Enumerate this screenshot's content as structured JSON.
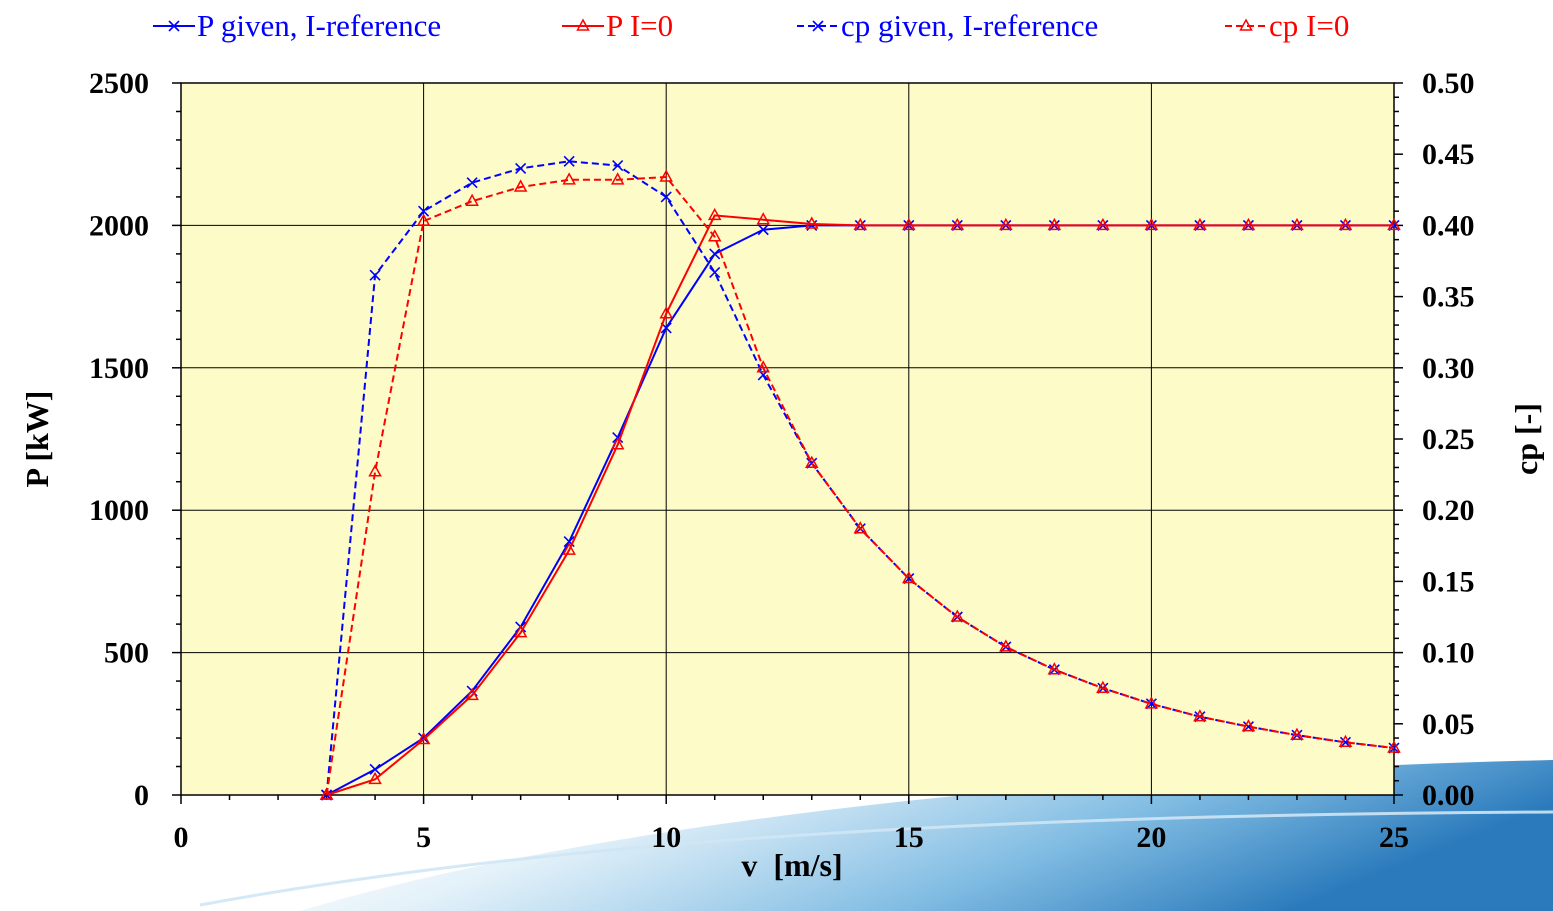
{
  "chart_data": {
    "type": "line",
    "xlabel": "v  [m/s]",
    "ylabel_left": "P [kW]",
    "ylabel_right": "cp [-]",
    "xlim": [
      0,
      25
    ],
    "ylim_left": [
      0,
      2500
    ],
    "ylim_right": [
      0,
      0.5
    ],
    "x_ticks": [
      "0",
      "5",
      "10",
      "15",
      "20",
      "25"
    ],
    "y_ticks_left": [
      "0",
      "500",
      "1000",
      "1500",
      "2000",
      "2500"
    ],
    "y_ticks_right": [
      "0.00",
      "0.05",
      "0.10",
      "0.15",
      "0.20",
      "0.25",
      "0.30",
      "0.35",
      "0.40",
      "0.45",
      "0.50"
    ],
    "grid": true,
    "plot_background": "#fdfcc8",
    "legend_position": "top",
    "x": [
      3,
      4,
      5,
      6,
      7,
      8,
      9,
      10,
      11,
      12,
      13,
      14,
      15,
      16,
      17,
      18,
      19,
      20,
      21,
      22,
      23,
      24,
      25
    ],
    "series": [
      {
        "name": "P given, I-reference",
        "axis": "left",
        "color": "#0000ff",
        "dash": false,
        "marker": "x",
        "values": [
          0,
          90,
          200,
          365,
          590,
          890,
          1255,
          1640,
          1900,
          1985,
          2000,
          2000,
          2000,
          2000,
          2000,
          2000,
          2000,
          2000,
          2000,
          2000,
          2000,
          2000,
          2000
        ]
      },
      {
        "name": "P I=0",
        "axis": "left",
        "color": "#ff0000",
        "dash": false,
        "marker": "triangle",
        "values": [
          0,
          55,
          195,
          350,
          570,
          860,
          1230,
          1690,
          2035,
          2020,
          2005,
          2000,
          2000,
          2000,
          2000,
          2000,
          2000,
          2000,
          2000,
          2000,
          2000,
          2000,
          2000
        ]
      },
      {
        "name": "cp given, I-reference",
        "axis": "right",
        "color": "#0000ff",
        "dash": true,
        "marker": "x",
        "values": [
          0,
          0.365,
          0.41,
          0.43,
          0.44,
          0.445,
          0.442,
          0.42,
          0.367,
          0.295,
          0.233,
          0.187,
          0.152,
          0.125,
          0.104,
          0.088,
          0.075,
          0.064,
          0.055,
          0.048,
          0.042,
          0.037,
          0.033
        ]
      },
      {
        "name": "cp I=0",
        "axis": "right",
        "color": "#ff0000",
        "dash": true,
        "marker": "triangle",
        "values": [
          0,
          0.227,
          0.403,
          0.417,
          0.427,
          0.432,
          0.432,
          0.434,
          0.392,
          0.3,
          0.233,
          0.187,
          0.152,
          0.125,
          0.104,
          0.088,
          0.075,
          0.064,
          0.055,
          0.048,
          0.042,
          0.037,
          0.033
        ]
      }
    ]
  }
}
